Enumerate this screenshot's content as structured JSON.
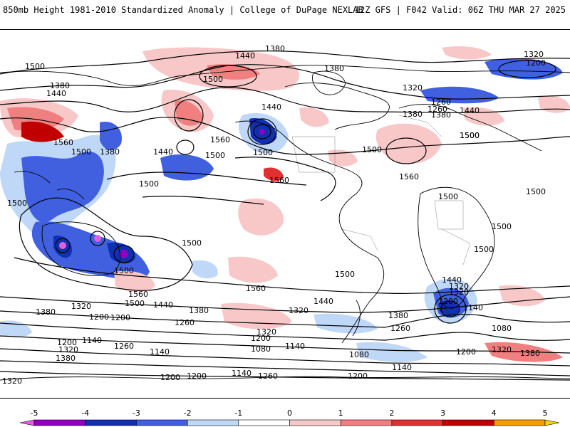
{
  "header": {
    "title_left": "850mb Height 1981-2010 Standardized Anomaly | College of DuPage NEXLAB",
    "title_right": "12Z GFS | F042 Valid: 06Z THU MAR 27 2025"
  },
  "colorbar": {
    "ticks": [
      "-5",
      "-4",
      "-3",
      "-2",
      "-1",
      "0",
      "1",
      "2",
      "3",
      "4",
      "5"
    ],
    "colors": [
      "#e060e0",
      "#9000c0",
      "#1030b0",
      "#4060e0",
      "#c0d8f8",
      "#ffffff",
      "#f8c8c8",
      "#f08080",
      "#e03030",
      "#c00000",
      "#f0a000",
      "#ffd000"
    ]
  },
  "contour_labels": [
    "1380",
    "1440",
    "1500",
    "1320",
    "1200",
    "1260",
    "1380",
    "1440",
    "1500",
    "1380",
    "1440",
    "1500",
    "1560",
    "1500",
    "1380",
    "1440",
    "1500",
    "1500",
    "1560",
    "1560",
    "1500",
    "1500",
    "1500",
    "1500",
    "1500",
    "1500",
    "1500",
    "1500",
    "1560",
    "1500",
    "1560",
    "1440",
    "1500",
    "1440",
    "1320",
    "1200",
    "1380",
    "1440",
    "1320",
    "1200",
    "1140",
    "1080",
    "1380",
    "1260",
    "1200",
    "1140",
    "1200",
    "1380",
    "1320",
    "1200",
    "1260",
    "1320",
    "1080",
    "1140",
    "1200",
    "1140",
    "1080",
    "1320",
    "1200",
    "1140",
    "1260",
    "1200",
    "1140",
    "1260",
    "1320",
    "1380",
    "1320",
    "1200",
    "1320",
    "1380",
    "1380",
    "1440",
    "1500",
    "1560",
    "1500",
    "1380",
    "1320",
    "1260"
  ]
}
